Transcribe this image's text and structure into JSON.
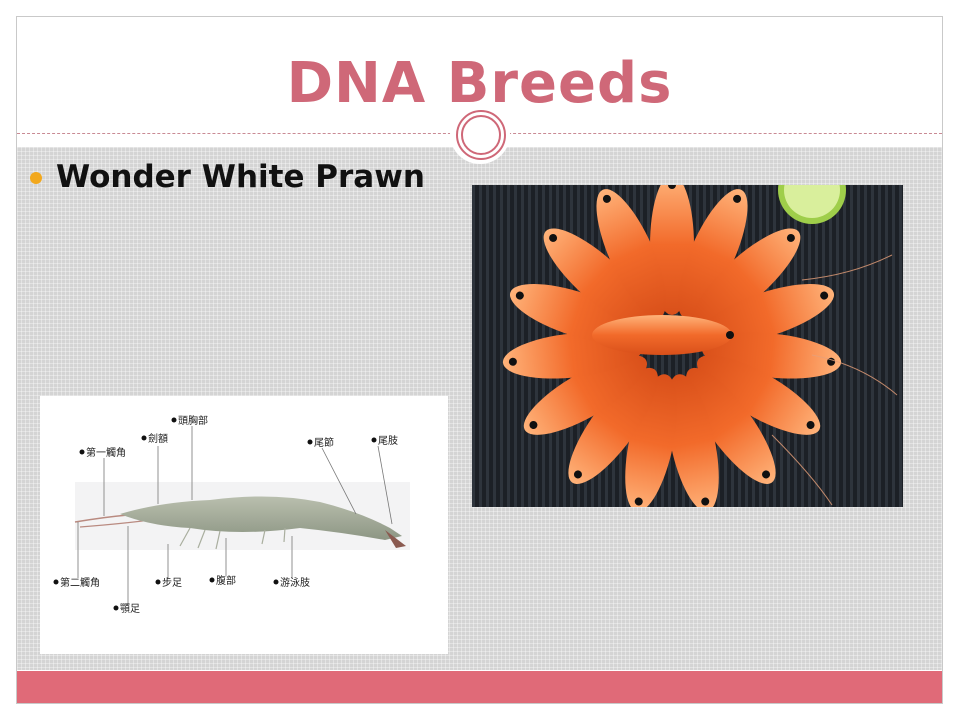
{
  "slide": {
    "title": "DNA Breeds",
    "bullet": "Wonder White Prawn"
  },
  "diagram": {
    "labels": {
      "head_thorax": "頭胸部",
      "rostrum": "劍額",
      "antennule": "第一觸角",
      "telson": "尾節",
      "uropod": "尾肢",
      "antenna": "第二觸角",
      "walking_legs": "步足",
      "abdomen": "腹部",
      "swimmerets": "游泳肢",
      "maxilliped": "顎足"
    }
  },
  "colors": {
    "accent": "#cf6878",
    "footer": "#e06a78",
    "bullet": "#f2a81d"
  }
}
